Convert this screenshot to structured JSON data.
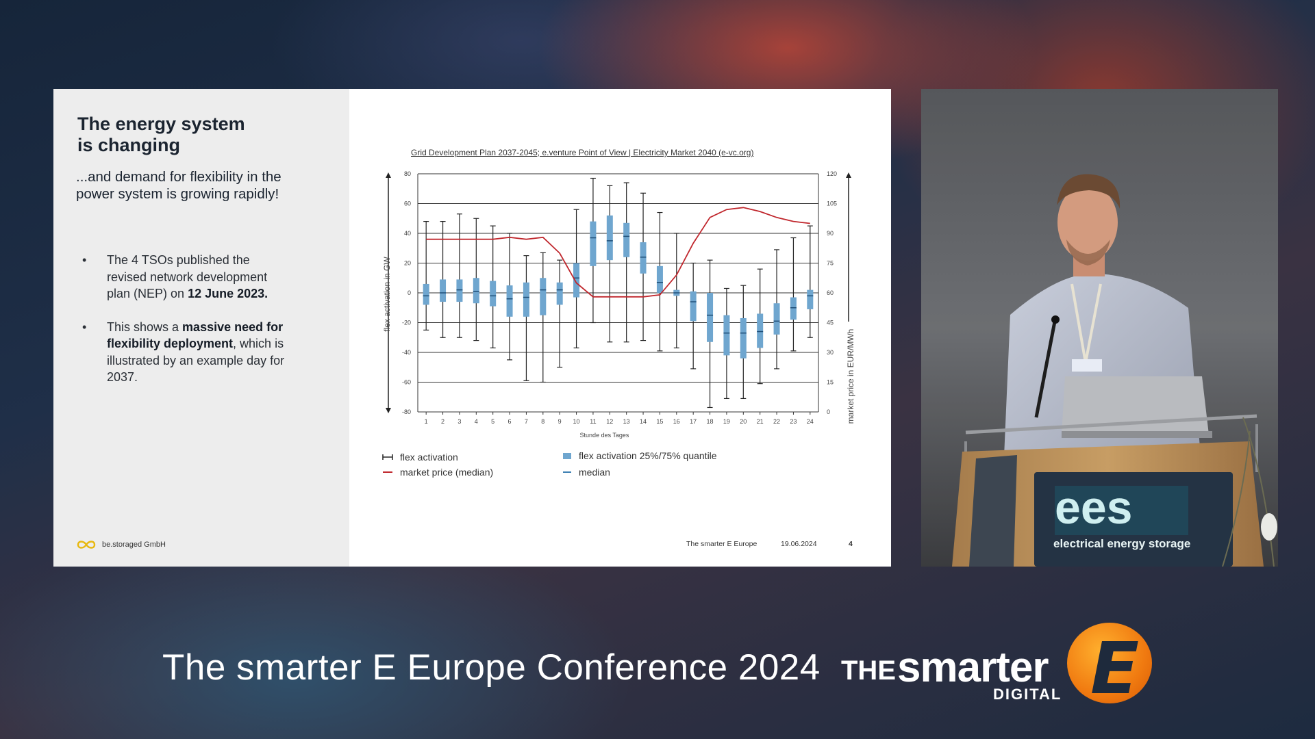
{
  "slide": {
    "title_line1": "The energy system",
    "title_line2": "is changing",
    "subtitle_line1": "...and demand for flexibility in the",
    "subtitle_line2": "power system is growing rapidly!",
    "bullet1_part1": "The 4 TSOs published the revised network development plan (NEP) on ",
    "bullet1_bold": "12 June 2023.",
    "bullet2_part1": "This shows a ",
    "bullet2_bold": "massive need for flexibility deployment",
    "bullet2_part2": ", which is illustrated by an example day for 2037.",
    "bullet_dot": "•",
    "company": "be.storaged GmbH",
    "chart_source": "Grid Development Plan 2037-2045; e.venture Point of View | Electricity Market 2040 (e-vc.org)",
    "footer_event": "The smarter E Europe",
    "footer_date": "19.06.2024",
    "footer_page": "4",
    "legend": {
      "flex_activation": "flex activation",
      "quantile": "flex activation 25%/75% quantile",
      "market_price": "market price (median)",
      "median": "median"
    }
  },
  "chart_data": {
    "type": "box",
    "title": "",
    "xlabel": "Stunde des Tages",
    "ylabel_left": "flex activation in GW",
    "ylabel_right": "market price in EUR/MWh",
    "x": [
      1,
      2,
      3,
      4,
      5,
      6,
      7,
      8,
      9,
      10,
      11,
      12,
      13,
      14,
      15,
      16,
      17,
      18,
      19,
      20,
      21,
      22,
      23,
      24
    ],
    "ylim_left": [
      -80,
      80
    ],
    "yticks_left": [
      80,
      60,
      40,
      20,
      0,
      -20,
      -40,
      -60,
      -80
    ],
    "ylim_right": [
      0,
      120
    ],
    "yticks_right": [
      120,
      105,
      90,
      75,
      60,
      45,
      30,
      15,
      0
    ],
    "grid": true,
    "colors": {
      "box": "#6fa6cf",
      "price": "#c0272d",
      "whisker": "#222222"
    },
    "series": [
      {
        "name": "flex activation",
        "min": [
          -25,
          -30,
          -30,
          -32,
          -37,
          -45,
          -59,
          -60,
          -50,
          -37,
          -20,
          -33,
          -33,
          -32,
          -39,
          -37,
          -51,
          -77,
          -71,
          -71,
          -61,
          -51,
          -39,
          -30
        ],
        "q1": [
          -8,
          -6,
          -6,
          -7,
          -9,
          -16,
          -16,
          -15,
          -8,
          -3,
          18,
          22,
          24,
          13,
          0,
          -2,
          -19,
          -33,
          -42,
          -44,
          -37,
          -28,
          -18,
          -11
        ],
        "median": [
          -2,
          0,
          2,
          1,
          -2,
          -4,
          -3,
          2,
          2,
          10,
          37,
          35,
          38,
          24,
          7,
          0,
          -6,
          -15,
          -27,
          -27,
          -26,
          -19,
          -10,
          -2
        ],
        "q3": [
          6,
          9,
          9,
          10,
          8,
          5,
          7,
          10,
          7,
          20,
          48,
          52,
          47,
          34,
          18,
          2,
          1,
          0,
          -15,
          -17,
          -14,
          -7,
          -3,
          2
        ],
        "max": [
          48,
          48,
          53,
          50,
          45,
          40,
          25,
          27,
          22,
          56,
          77,
          72,
          74,
          67,
          54,
          40,
          20,
          22,
          3,
          5,
          16,
          29,
          37,
          45
        ]
      },
      {
        "name": "market price (median)",
        "axis": "right",
        "values": [
          87,
          87,
          87,
          87,
          87,
          88,
          87,
          88,
          80,
          65,
          58,
          58,
          58,
          58,
          59,
          69,
          85,
          98,
          102,
          103,
          101,
          98,
          96,
          95
        ]
      }
    ]
  },
  "conference": {
    "title": "The smarter E Europe Conference 2024",
    "brand_the": "THE",
    "brand_smarter": "smarter",
    "brand_digital": "DIGITAL",
    "brand_e": "E"
  },
  "presenter": {
    "podium_logo": "ees",
    "podium_text": "electrical energy storage"
  }
}
